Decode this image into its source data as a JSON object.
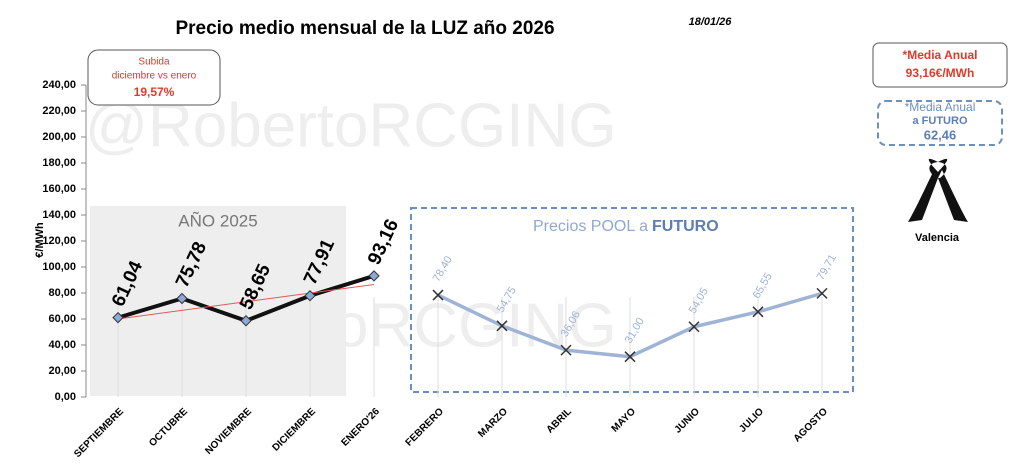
{
  "chart_data": {
    "type": "line",
    "title": "Precio medio mensual de la LUZ año 2026",
    "date": "18/01/26",
    "y_label": "€/MWh",
    "watermark": "@RobertoRCGING",
    "categories": [
      "SEPTIEMBRE",
      "OCTUBRE",
      "NOVIEMBRE",
      "DICIEMBRE",
      "ENERO'26",
      "FEBRERO",
      "MARZO",
      "ABRIL",
      "MAYO",
      "JUNIO",
      "JULIO",
      "AGOSTO"
    ],
    "series": [
      {
        "name": "AÑO 2025",
        "color": "#111111",
        "marker": "diamond",
        "marker_color": "#8fa8d8",
        "values": [
          61.04,
          75.78,
          58.65,
          77.91,
          93.16,
          null,
          null,
          null,
          null,
          null,
          null,
          null
        ],
        "value_labels": [
          "61,04",
          "75,78",
          "58,65",
          "77,91",
          "93,16",
          null,
          null,
          null,
          null,
          null,
          null,
          null
        ]
      },
      {
        "name": "Precios POOL a FUTURO",
        "color": "#9fb3d6",
        "marker": "x",
        "marker_color": "#333333",
        "values": [
          null,
          null,
          null,
          null,
          null,
          78.4,
          54.75,
          36.06,
          31.0,
          54.05,
          65.55,
          79.71
        ],
        "value_labels": [
          null,
          null,
          null,
          null,
          null,
          "78,40",
          "54,75",
          "36,06",
          "31,00",
          "54,05",
          "65,55",
          "79,71"
        ]
      }
    ],
    "trendline": {
      "series": 0,
      "color": "#e05a5a"
    },
    "ylim": [
      0,
      240
    ],
    "yticks": [
      {
        "value": 0,
        "label": "0,00"
      },
      {
        "value": 20,
        "label": "20,00"
      },
      {
        "value": 40,
        "label": "40,00"
      },
      {
        "value": 60,
        "label": "60,00"
      },
      {
        "value": 80,
        "label": "80,00"
      },
      {
        "value": 100,
        "label": "100,00"
      },
      {
        "value": 120,
        "label": "120,00"
      },
      {
        "value": 140,
        "label": "140,00"
      },
      {
        "value": 160,
        "label": "160,00"
      },
      {
        "value": 180,
        "label": "180,00"
      },
      {
        "value": 200,
        "label": "200,00"
      },
      {
        "value": 220,
        "label": "220,00"
      },
      {
        "value": 240,
        "label": "240,00"
      }
    ],
    "annotations": {
      "rise_label": [
        "Subida",
        "diciembre vs enero"
      ],
      "rise_value": "19,57%",
      "annual_label": "*Media Anual",
      "annual_value": "93,16€/MWh",
      "future_label": [
        "*Media Anual",
        "a FUTURO"
      ],
      "future_value": "62,46",
      "ribbon_label": "Valencia",
      "year_box": "AÑO 2025",
      "future_box": [
        "Precios POOL a",
        "FUTURO"
      ]
    }
  }
}
